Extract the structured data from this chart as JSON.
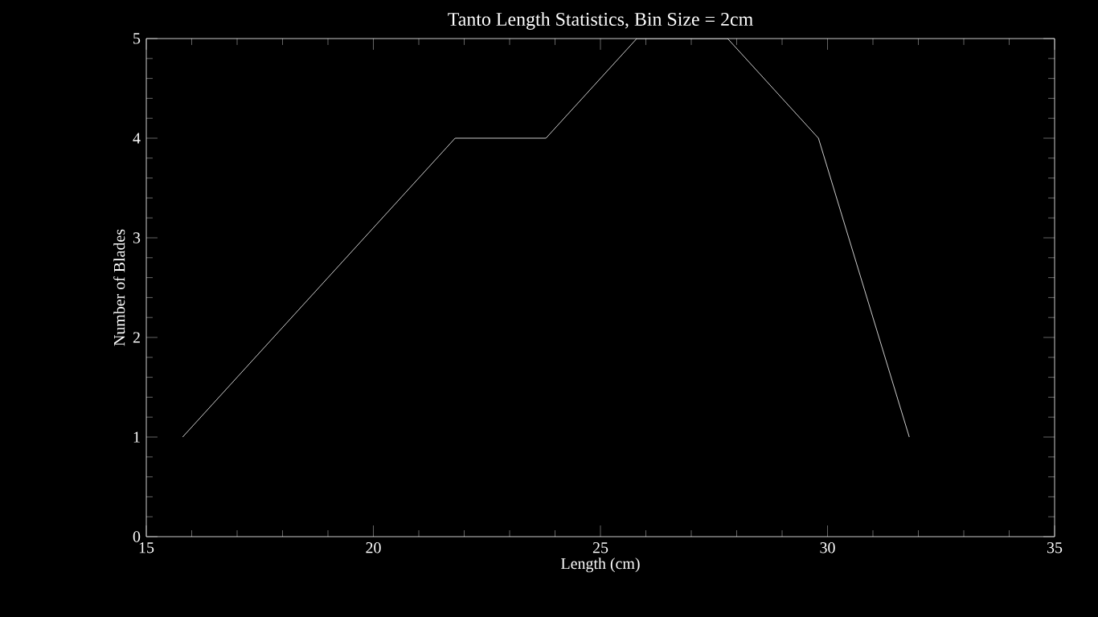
{
  "chart_data": {
    "type": "line",
    "title": "Tanto Length Statistics, Bin Size = 2cm",
    "xlabel": "Length (cm)",
    "ylabel": "Number of Blades",
    "x": [
      15.8,
      17.8,
      19.8,
      21.8,
      23.8,
      25.8,
      27.8,
      29.8,
      31.8
    ],
    "series": [
      {
        "color": "#ffffff",
        "values": [
          1,
          2,
          3,
          4,
          4,
          5,
          5,
          4,
          1
        ]
      }
    ],
    "xlim": [
      15,
      35
    ],
    "ylim": [
      0,
      5
    ],
    "xticks": [
      15,
      20,
      25,
      30,
      35
    ],
    "yticks": [
      0,
      1,
      2,
      3,
      4,
      5
    ],
    "marker": "none",
    "line_style": "solid"
  }
}
